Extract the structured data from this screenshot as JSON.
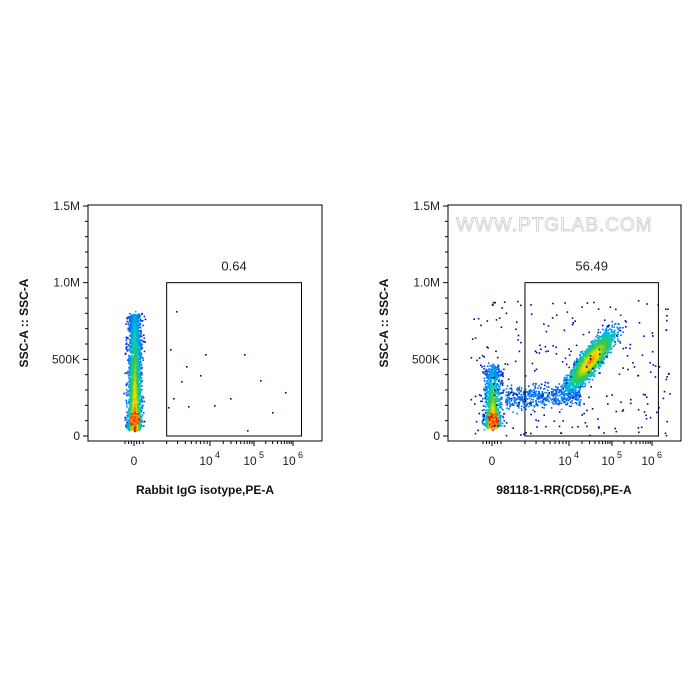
{
  "watermark": "WWW.PTGLAB.COM",
  "chart_data": [
    {
      "type": "scatter",
      "subtype": "flow-cytometry-pseudocolor",
      "title": "",
      "xlabel": "Rabbit IgG isotype,PE-A",
      "ylabel": "SSC-A :: SSC-A",
      "x_scale": "biexponential",
      "y_scale": "linear",
      "ylim": [
        0,
        1500000
      ],
      "y_ticks": [
        "0",
        "500K",
        "1.0M",
        "1.5M"
      ],
      "x_ticks": [
        {
          "base": "0",
          "exp": ""
        },
        {
          "base": "10",
          "exp": "4"
        },
        {
          "base": "10",
          "exp": "5"
        },
        {
          "base": "10",
          "exp": "6"
        }
      ],
      "gate": {
        "label": "0.64",
        "x_range": [
          2000,
          1200000
        ],
        "y_range": [
          0,
          1000000
        ]
      },
      "populations": [
        {
          "name": "negative",
          "x_center": 0,
          "y_center": 250000,
          "y_spread": 180000,
          "fraction": 0.994
        }
      ]
    },
    {
      "type": "scatter",
      "subtype": "flow-cytometry-pseudocolor",
      "title": "",
      "xlabel": "98118-1-RR(CD56),PE-A",
      "ylabel": "SSC-A :: SSC-A",
      "x_scale": "biexponential",
      "y_scale": "linear",
      "ylim": [
        0,
        1500000
      ],
      "y_ticks": [
        "0",
        "500K",
        "1.0M",
        "1.5M"
      ],
      "x_ticks": [
        {
          "base": "0",
          "exp": ""
        },
        {
          "base": "10",
          "exp": "4"
        },
        {
          "base": "10",
          "exp": "5"
        },
        {
          "base": "10",
          "exp": "6"
        }
      ],
      "gate": {
        "label": "56.49",
        "x_range": [
          2000,
          1200000
        ],
        "y_range": [
          0,
          1000000
        ]
      },
      "populations": [
        {
          "name": "negative",
          "x_center": 0,
          "y_center": 120000,
          "y_spread": 90000,
          "fraction": 0.43
        },
        {
          "name": "CD56-positive",
          "x_center": 60000,
          "y_center": 520000,
          "y_spread": 180000,
          "fraction": 0.565
        }
      ]
    }
  ]
}
